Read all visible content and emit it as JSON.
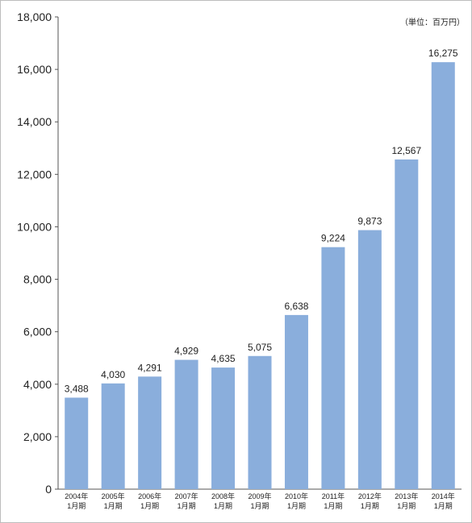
{
  "chart_data": {
    "type": "bar",
    "unit_label": "（単位：百万円）",
    "categories": [
      [
        "2004年",
        "1月期"
      ],
      [
        "2005年",
        "1月期"
      ],
      [
        "2006年",
        "1月期"
      ],
      [
        "2007年",
        "1月期"
      ],
      [
        "2008年",
        "1月期"
      ],
      [
        "2009年",
        "1月期"
      ],
      [
        "2010年",
        "1月期"
      ],
      [
        "2011年",
        "1月期"
      ],
      [
        "2012年",
        "1月期"
      ],
      [
        "2013年",
        "1月期"
      ],
      [
        "2014年",
        "1月期"
      ]
    ],
    "values": [
      3488,
      4030,
      4291,
      4929,
      4635,
      5075,
      6638,
      9224,
      9873,
      12567,
      16275
    ],
    "value_labels": [
      "3,488",
      "4,030",
      "4,291",
      "4,929",
      "4,635",
      "5,075",
      "6,638",
      "9,224",
      "9,873",
      "12,567",
      "16,275"
    ],
    "ylim": [
      0,
      18000
    ],
    "yticks": [
      0,
      2000,
      4000,
      6000,
      8000,
      10000,
      12000,
      14000,
      16000,
      18000
    ],
    "ytick_labels": [
      "0",
      "2,000",
      "4,000",
      "6,000",
      "8,000",
      "10,000",
      "12,000",
      "14,000",
      "16,000",
      "18,000"
    ],
    "bar_color": "#8aaedc",
    "axis_color": "#555555",
    "grid": false
  }
}
